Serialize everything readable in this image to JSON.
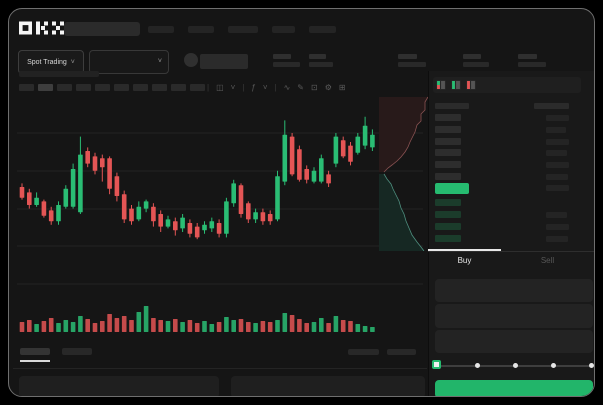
{
  "brand": {
    "logo": "OKX"
  },
  "header": {
    "nav_items": 5
  },
  "subheader": {
    "market_selector_label": "Spot Trading",
    "stat_groups": 5
  },
  "chart_toolbar": {
    "timeframes": 10,
    "active_index": 1,
    "icons": [
      "candle-type",
      "chevron-down",
      "indicators",
      "chevron-down",
      "line-tool",
      "draw-tool",
      "camera",
      "settings",
      "fullscreen"
    ]
  },
  "chart_data": {
    "type": "candlestick",
    "title": "",
    "axis_labels_visible": false,
    "gridline_count": 5,
    "colors": {
      "up": "#2abd74",
      "down": "#e45555"
    },
    "candles_ohlc": [
      [
        65,
        67,
        58,
        59
      ],
      [
        62,
        64,
        53,
        55
      ],
      [
        55,
        62,
        54,
        59
      ],
      [
        57,
        58,
        48,
        49
      ],
      [
        52,
        54,
        44,
        46
      ],
      [
        46,
        57,
        44,
        55
      ],
      [
        54,
        66,
        53,
        64
      ],
      [
        54,
        78,
        53,
        75
      ],
      [
        51,
        93,
        50,
        83
      ],
      [
        85,
        87,
        76,
        78
      ],
      [
        82,
        84,
        72,
        74
      ],
      [
        81,
        83,
        68,
        76
      ],
      [
        81,
        82,
        61,
        64
      ],
      [
        71,
        73,
        57,
        60
      ],
      [
        61,
        63,
        45,
        47
      ],
      [
        53,
        55,
        44,
        46
      ],
      [
        47,
        57,
        46,
        54
      ],
      [
        53,
        58,
        51,
        57
      ],
      [
        54,
        56,
        43,
        46
      ],
      [
        50,
        52,
        40,
        43
      ],
      [
        43,
        49,
        42,
        47
      ],
      [
        46,
        48,
        38,
        41
      ],
      [
        42,
        50,
        40,
        48
      ],
      [
        45,
        47,
        37,
        39
      ],
      [
        43,
        45,
        36,
        37
      ],
      [
        41,
        46,
        39,
        44
      ],
      [
        42,
        48,
        40,
        46
      ],
      [
        45,
        47,
        37,
        39
      ],
      [
        39,
        59,
        37,
        57
      ],
      [
        56,
        69,
        54,
        67
      ],
      [
        66,
        67,
        48,
        50
      ],
      [
        56,
        57,
        45,
        47
      ],
      [
        47,
        53,
        45,
        51
      ],
      [
        51,
        53,
        44,
        46
      ],
      [
        50,
        52,
        44,
        46
      ],
      [
        47,
        74,
        46,
        71
      ],
      [
        68,
        102,
        66,
        94
      ],
      [
        93,
        95,
        71,
        72
      ],
      [
        86,
        88,
        68,
        69
      ],
      [
        75,
        77,
        67,
        69
      ],
      [
        68,
        76,
        67,
        74
      ],
      [
        68,
        83,
        67,
        81
      ],
      [
        72,
        74,
        65,
        67
      ],
      [
        78,
        95,
        76,
        93
      ],
      [
        91,
        93,
        81,
        82
      ],
      [
        88,
        90,
        77,
        79
      ],
      [
        84,
        95,
        83,
        93
      ],
      [
        88,
        104,
        86,
        99
      ],
      [
        87,
        97,
        85,
        94
      ]
    ],
    "volumes": [
      10,
      12,
      8,
      11,
      14,
      9,
      12,
      10,
      16,
      13,
      9,
      11,
      18,
      14,
      16,
      12,
      20,
      26,
      14,
      12,
      11,
      13,
      10,
      12,
      9,
      11,
      8,
      10,
      15,
      12,
      13,
      10,
      9,
      11,
      10,
      12,
      19,
      17,
      13,
      9,
      10,
      14,
      9,
      16,
      12,
      11,
      8,
      6,
      5
    ],
    "depth_profile": {
      "asks": [
        [
          49,
          1
        ],
        [
          46,
          6
        ],
        [
          46,
          14
        ],
        [
          42,
          18
        ],
        [
          42,
          25
        ],
        [
          38,
          29
        ],
        [
          36,
          36
        ],
        [
          34,
          40
        ],
        [
          31,
          46
        ],
        [
          29,
          51
        ],
        [
          26,
          56
        ],
        [
          22,
          61
        ],
        [
          18,
          65
        ],
        [
          13,
          69
        ],
        [
          9,
          72
        ],
        [
          5,
          76
        ]
      ],
      "bids": [
        [
          5,
          78
        ],
        [
          8,
          83
        ],
        [
          12,
          88
        ],
        [
          14,
          93
        ],
        [
          17,
          99
        ],
        [
          20,
          105
        ],
        [
          22,
          112
        ],
        [
          25,
          118
        ],
        [
          27,
          125
        ],
        [
          30,
          132
        ],
        [
          33,
          139
        ],
        [
          38,
          146
        ],
        [
          42,
          151
        ],
        [
          45,
          155
        ]
      ],
      "colors": {
        "ask_line": "#8a5252",
        "ask_fill": "#281a1a",
        "bid_line": "#4e8f7f",
        "bid_fill": "#162823"
      }
    }
  },
  "orderbook": {
    "view_modes": [
      "combined-book",
      "bids-only",
      "asks-only"
    ],
    "ask_rows": 6,
    "bid_rows": 4,
    "last_price_highlight_color": "#26bb70"
  },
  "trade_panel": {
    "tabs": [
      {
        "label": "Buy",
        "active": true
      },
      {
        "label": "Sell",
        "active": false
      }
    ],
    "input_fields": 3,
    "slider_stops": 5,
    "slider_value_index": 0,
    "submit_button_color": "#22b56a"
  },
  "bottom_bar": {
    "tabs": 2,
    "active_tab_index": 0,
    "right_placeholders": 2,
    "panels": 2
  }
}
